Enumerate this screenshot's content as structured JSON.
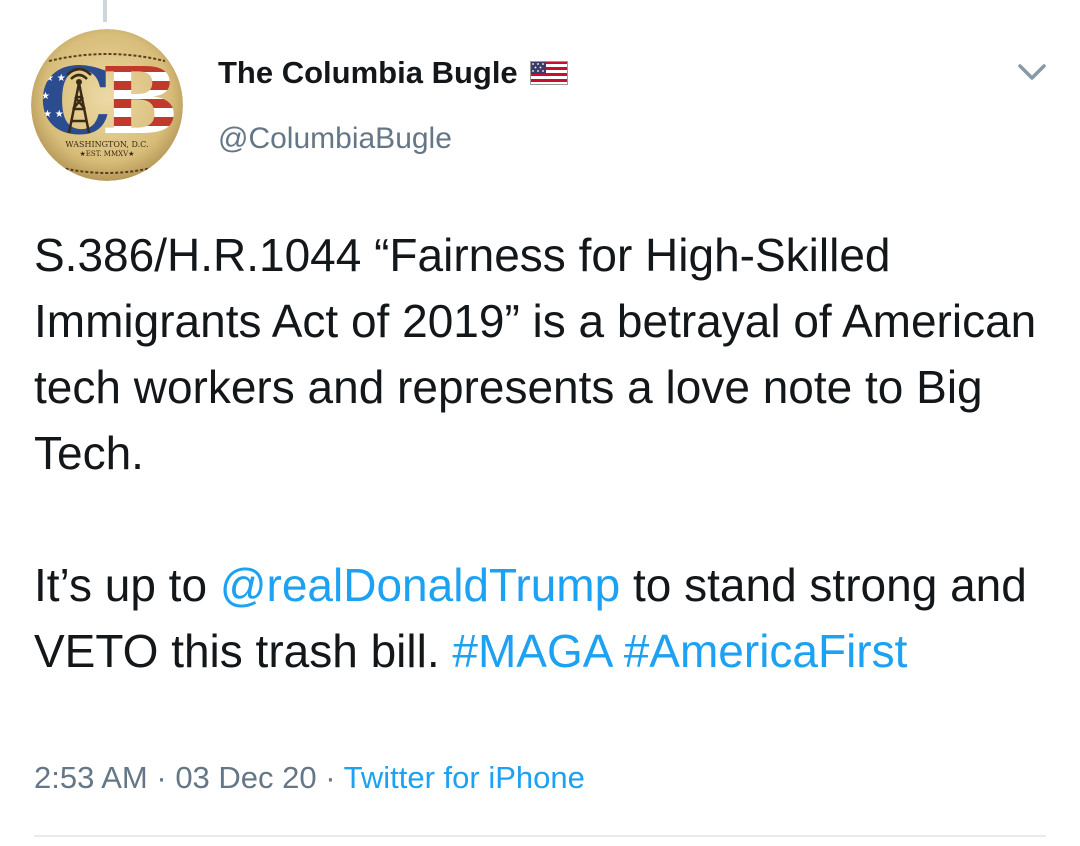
{
  "tweet": {
    "display_name": "The Columbia Bugle",
    "handle": "@ColumbiaBugle",
    "avatar": {
      "initials": "CB",
      "caption_line1": "WASHINGTON, D.C.",
      "caption_line2": "★EST. MMXV★"
    },
    "badge_icon": "us-flag-icon",
    "menu_icon": "chevron-down-icon",
    "paragraph1": "S.386/H.R.1044 “Fairness for High-Skilled Immigrants Act of 2019” is a betrayal of American tech workers and represents a love note to Big Tech.",
    "paragraph2_part1": "It’s up to ",
    "mention": "@realDonaldTrump",
    "paragraph2_part2": " to stand strong and VETO this trash bill. ",
    "hashtag1": "#MAGA",
    "hashtag2": "#AmericaFirst",
    "time": "2:53 AM",
    "separator": " · ",
    "date": "03 Dec 20",
    "source": "Twitter for iPhone"
  },
  "colors": {
    "text": "#14171a",
    "secondary": "#657786",
    "link": "#1da1f2",
    "divider": "#e6ecf0"
  }
}
